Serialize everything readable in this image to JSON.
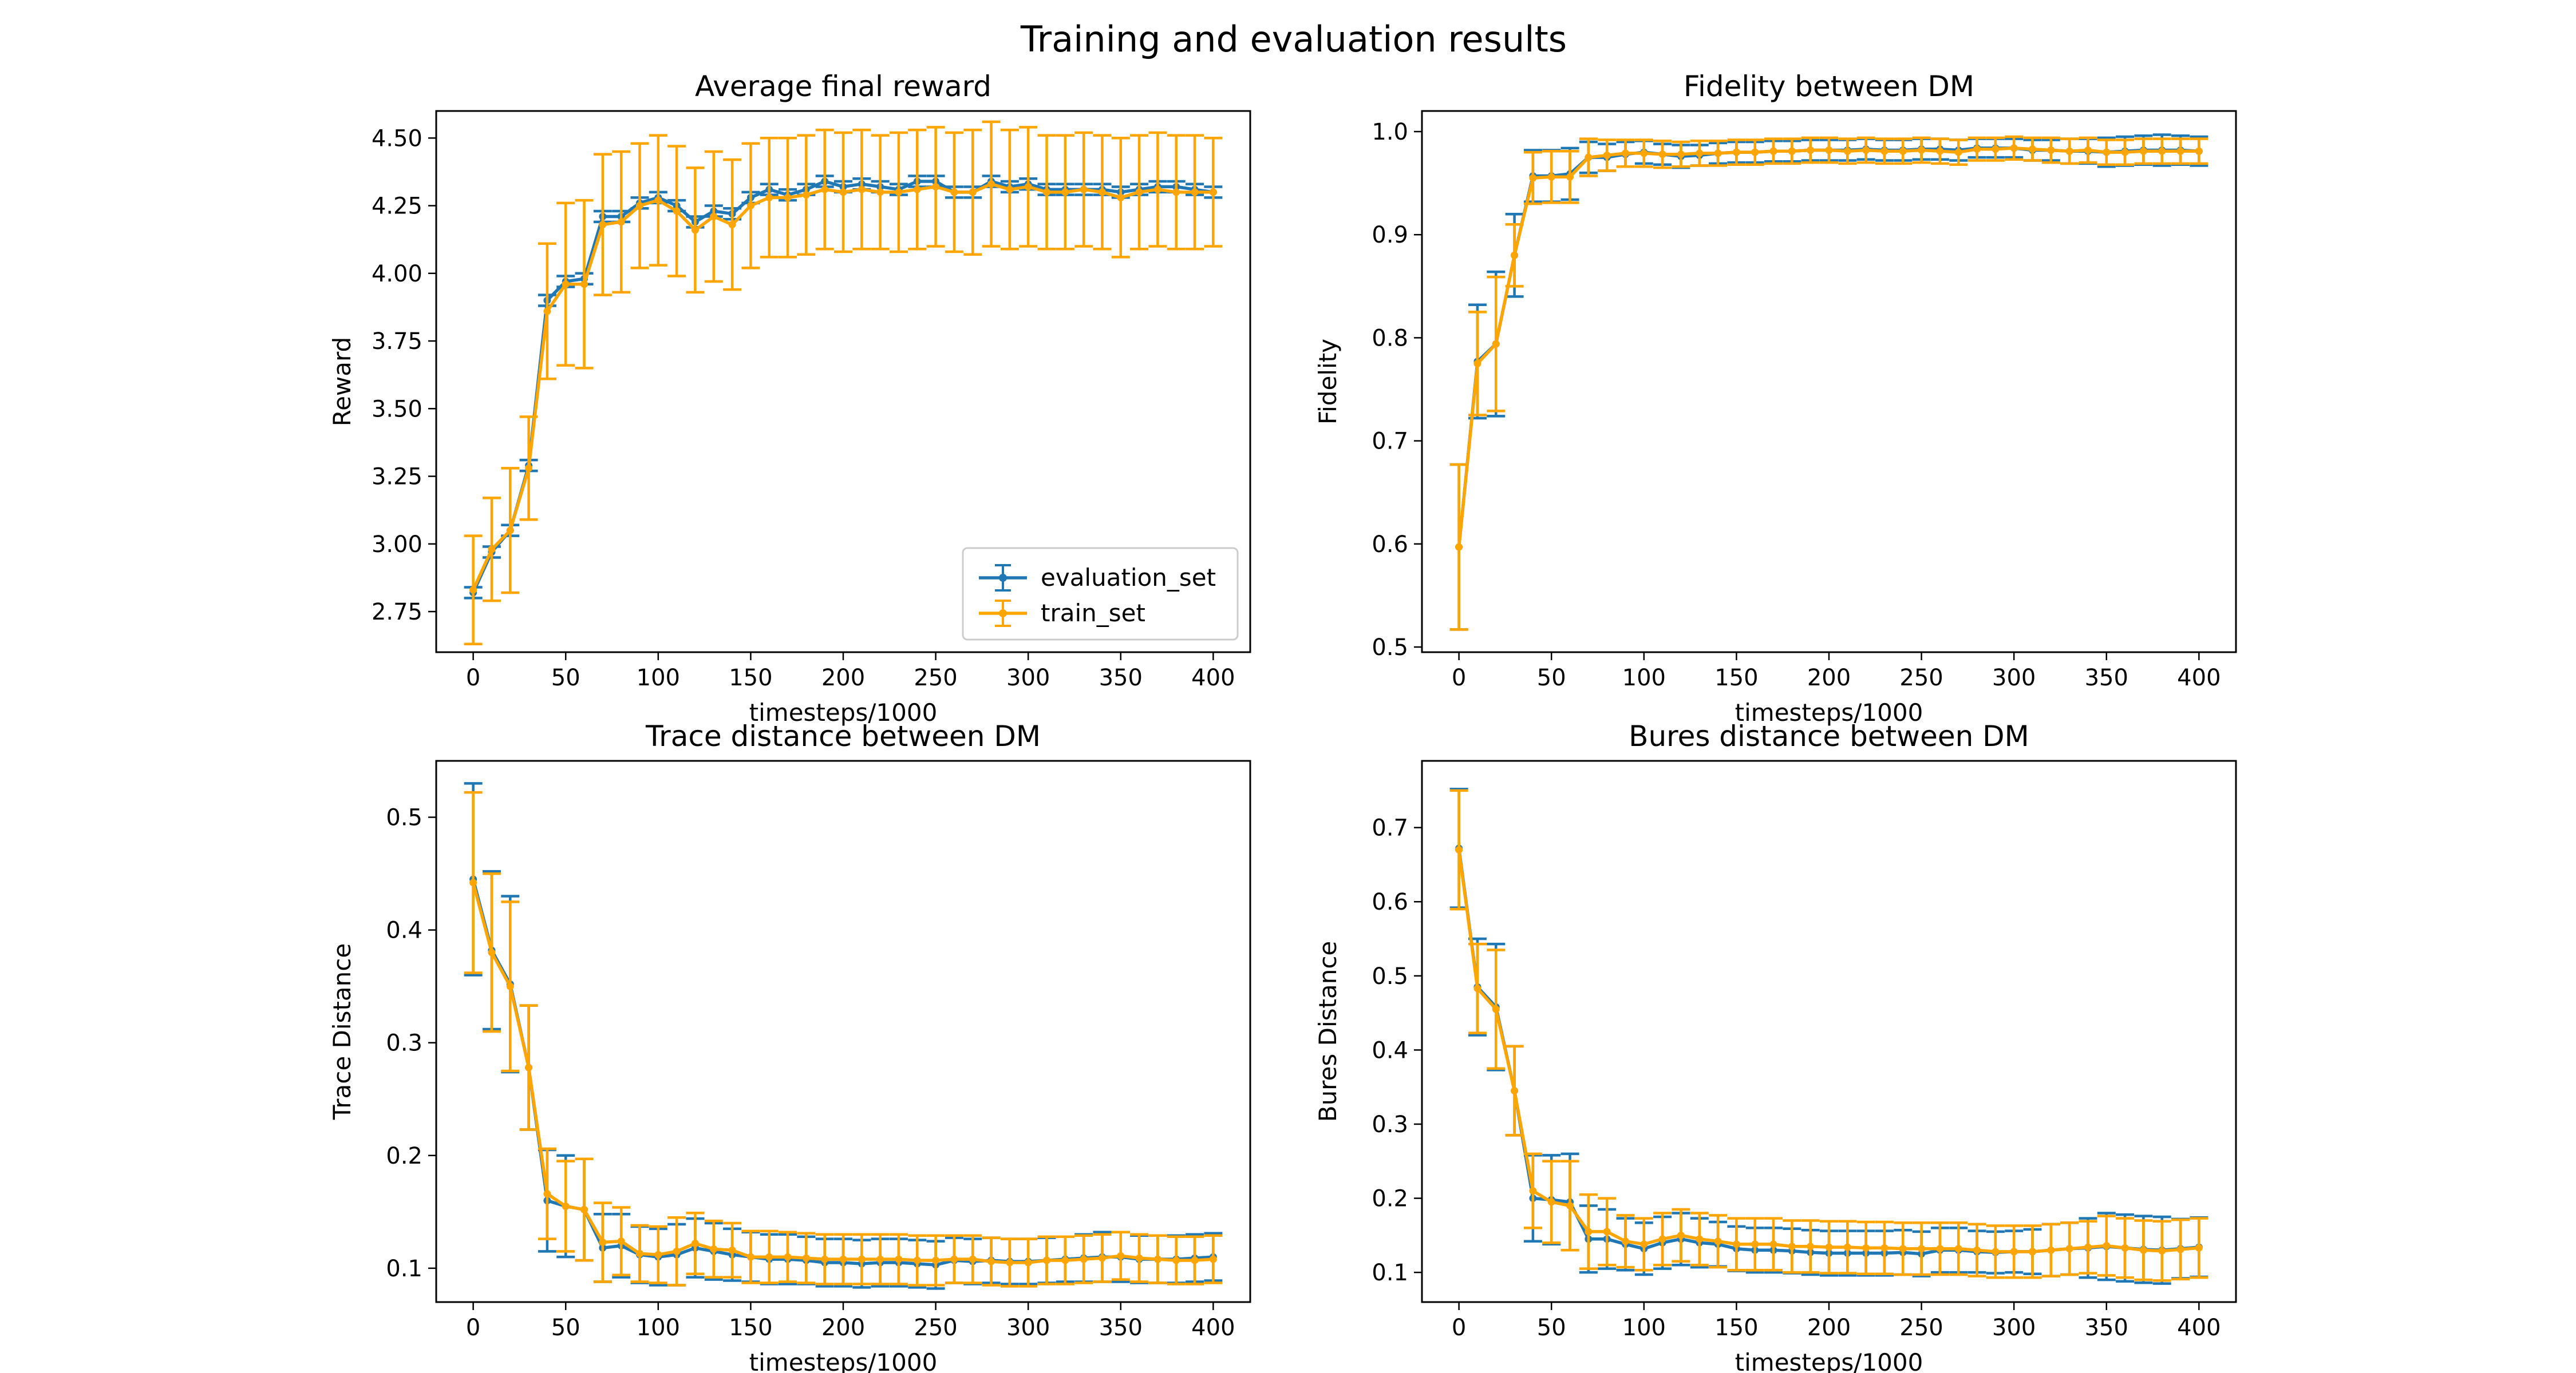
{
  "figure": {
    "title": "Training and evaluation results",
    "colors": {
      "evaluation": "#1f77b4",
      "train": "#ffa500"
    }
  },
  "chart_data": [
    {
      "type": "line",
      "error_bars": true,
      "title": "Average final reward",
      "xlabel": "timesteps/1000",
      "ylabel": "Reward",
      "xlim": [
        -20,
        420
      ],
      "ylim": [
        2.6,
        4.6
      ],
      "xticks": [
        0,
        50,
        100,
        150,
        200,
        250,
        300,
        350,
        400
      ],
      "yticks": [
        2.75,
        3.0,
        3.25,
        3.5,
        3.75,
        4.0,
        4.25,
        4.5
      ],
      "ytick_labels": [
        "2.75",
        "3.00",
        "3.25",
        "3.50",
        "3.75",
        "4.00",
        "4.25",
        "4.50"
      ],
      "legend": {
        "position": "lower-right",
        "entries": [
          "evaluation_set",
          "train_set"
        ]
      },
      "x": [
        0,
        10,
        20,
        30,
        40,
        50,
        60,
        70,
        80,
        90,
        100,
        110,
        120,
        130,
        140,
        150,
        160,
        170,
        180,
        190,
        200,
        210,
        220,
        230,
        240,
        250,
        260,
        270,
        280,
        290,
        300,
        310,
        320,
        330,
        340,
        350,
        360,
        370,
        380,
        390,
        400
      ],
      "series": [
        {
          "name": "evaluation_set",
          "values": [
            2.82,
            2.97,
            3.05,
            3.29,
            3.9,
            3.97,
            3.98,
            4.21,
            4.21,
            4.26,
            4.28,
            4.25,
            4.19,
            4.23,
            4.22,
            4.28,
            4.31,
            4.29,
            4.31,
            4.34,
            4.32,
            4.33,
            4.32,
            4.31,
            4.34,
            4.34,
            4.3,
            4.3,
            4.34,
            4.32,
            4.33,
            4.31,
            4.31,
            4.31,
            4.31,
            4.3,
            4.31,
            4.32,
            4.32,
            4.31,
            4.3
          ],
          "errors": [
            0.02,
            0.02,
            0.02,
            0.02,
            0.02,
            0.02,
            0.02,
            0.02,
            0.02,
            0.02,
            0.02,
            0.02,
            0.02,
            0.02,
            0.02,
            0.02,
            0.02,
            0.02,
            0.02,
            0.02,
            0.02,
            0.02,
            0.02,
            0.02,
            0.02,
            0.02,
            0.02,
            0.02,
            0.02,
            0.02,
            0.02,
            0.02,
            0.02,
            0.02,
            0.02,
            0.02,
            0.02,
            0.02,
            0.02,
            0.02,
            0.02
          ]
        },
        {
          "name": "train_set",
          "values": [
            2.83,
            2.98,
            3.05,
            3.28,
            3.86,
            3.96,
            3.96,
            4.18,
            4.19,
            4.25,
            4.27,
            4.23,
            4.16,
            4.21,
            4.18,
            4.25,
            4.28,
            4.28,
            4.29,
            4.31,
            4.3,
            4.31,
            4.3,
            4.3,
            4.31,
            4.32,
            4.3,
            4.3,
            4.33,
            4.31,
            4.32,
            4.3,
            4.3,
            4.31,
            4.3,
            4.28,
            4.3,
            4.31,
            4.3,
            4.3,
            4.3
          ],
          "errors": [
            0.2,
            0.19,
            0.23,
            0.19,
            0.25,
            0.3,
            0.31,
            0.26,
            0.26,
            0.23,
            0.24,
            0.24,
            0.23,
            0.24,
            0.24,
            0.23,
            0.22,
            0.22,
            0.22,
            0.22,
            0.22,
            0.22,
            0.21,
            0.22,
            0.22,
            0.22,
            0.22,
            0.23,
            0.23,
            0.22,
            0.22,
            0.21,
            0.21,
            0.21,
            0.21,
            0.22,
            0.21,
            0.21,
            0.21,
            0.21,
            0.2
          ]
        }
      ]
    },
    {
      "type": "line",
      "error_bars": true,
      "title": "Fidelity between DM",
      "xlabel": "timesteps/1000",
      "ylabel": "Fidelity",
      "xlim": [
        -20,
        420
      ],
      "ylim": [
        0.495,
        1.02
      ],
      "xticks": [
        0,
        50,
        100,
        150,
        200,
        250,
        300,
        350,
        400
      ],
      "yticks": [
        0.5,
        0.6,
        0.7,
        0.8,
        0.9,
        1.0
      ],
      "ytick_labels": [
        "0.5",
        "0.6",
        "0.7",
        "0.8",
        "0.9",
        "1.0"
      ],
      "x": [
        0,
        10,
        20,
        30,
        40,
        50,
        60,
        70,
        80,
        90,
        100,
        110,
        120,
        130,
        140,
        150,
        160,
        170,
        180,
        190,
        200,
        210,
        220,
        230,
        240,
        250,
        260,
        270,
        280,
        290,
        300,
        310,
        320,
        330,
        340,
        350,
        360,
        370,
        380,
        390,
        400
      ],
      "series": [
        {
          "name": "evaluation_set",
          "values": [
            0.597,
            0.777,
            0.794,
            0.88,
            0.957,
            0.957,
            0.959,
            0.975,
            0.975,
            0.978,
            0.98,
            0.978,
            0.976,
            0.977,
            0.979,
            0.98,
            0.98,
            0.981,
            0.981,
            0.982,
            0.982,
            0.982,
            0.983,
            0.982,
            0.982,
            0.983,
            0.983,
            0.982,
            0.984,
            0.984,
            0.984,
            0.982,
            0.982,
            0.981,
            0.981,
            0.98,
            0.981,
            0.982,
            0.982,
            0.982,
            0.981
          ],
          "errors": [
            0.08,
            0.055,
            0.07,
            0.04,
            0.025,
            0.025,
            0.025,
            0.015,
            0.013,
            0.012,
            0.011,
            0.01,
            0.011,
            0.01,
            0.01,
            0.01,
            0.01,
            0.01,
            0.01,
            0.01,
            0.01,
            0.01,
            0.01,
            0.01,
            0.01,
            0.01,
            0.01,
            0.01,
            0.009,
            0.009,
            0.009,
            0.01,
            0.01,
            0.012,
            0.012,
            0.014,
            0.014,
            0.014,
            0.015,
            0.014,
            0.014
          ]
        },
        {
          "name": "train_set",
          "values": [
            0.597,
            0.775,
            0.794,
            0.88,
            0.955,
            0.956,
            0.956,
            0.975,
            0.977,
            0.979,
            0.979,
            0.978,
            0.978,
            0.979,
            0.979,
            0.98,
            0.98,
            0.981,
            0.981,
            0.982,
            0.982,
            0.981,
            0.982,
            0.981,
            0.981,
            0.982,
            0.981,
            0.98,
            0.983,
            0.983,
            0.984,
            0.983,
            0.982,
            0.981,
            0.982,
            0.98,
            0.98,
            0.981,
            0.981,
            0.981,
            0.981
          ],
          "errors": [
            0.08,
            0.05,
            0.065,
            0.03,
            0.025,
            0.025,
            0.025,
            0.018,
            0.015,
            0.013,
            0.013,
            0.013,
            0.012,
            0.012,
            0.012,
            0.012,
            0.012,
            0.012,
            0.012,
            0.012,
            0.012,
            0.012,
            0.012,
            0.012,
            0.012,
            0.012,
            0.012,
            0.012,
            0.011,
            0.011,
            0.011,
            0.011,
            0.012,
            0.012,
            0.012,
            0.012,
            0.012,
            0.012,
            0.012,
            0.012,
            0.012
          ]
        }
      ]
    },
    {
      "type": "line",
      "error_bars": true,
      "title": "Trace distance between DM",
      "xlabel": "timesteps/1000",
      "ylabel": "Trace Distance",
      "xlim": [
        -20,
        420
      ],
      "ylim": [
        0.07,
        0.55
      ],
      "xticks": [
        0,
        50,
        100,
        150,
        200,
        250,
        300,
        350,
        400
      ],
      "yticks": [
        0.1,
        0.2,
        0.3,
        0.4,
        0.5
      ],
      "ytick_labels": [
        "0.1",
        "0.2",
        "0.3",
        "0.4",
        "0.5"
      ],
      "x": [
        0,
        10,
        20,
        30,
        40,
        50,
        60,
        70,
        80,
        90,
        100,
        110,
        120,
        130,
        140,
        150,
        160,
        170,
        180,
        190,
        200,
        210,
        220,
        230,
        240,
        250,
        260,
        270,
        280,
        290,
        300,
        310,
        320,
        330,
        340,
        350,
        360,
        370,
        380,
        390,
        400
      ],
      "series": [
        {
          "name": "evaluation_set",
          "values": [
            0.445,
            0.382,
            0.352,
            0.278,
            0.16,
            0.155,
            0.152,
            0.118,
            0.12,
            0.112,
            0.11,
            0.112,
            0.118,
            0.115,
            0.112,
            0.11,
            0.108,
            0.108,
            0.107,
            0.105,
            0.105,
            0.104,
            0.105,
            0.105,
            0.104,
            0.103,
            0.107,
            0.106,
            0.107,
            0.106,
            0.106,
            0.107,
            0.108,
            0.109,
            0.11,
            0.11,
            0.108,
            0.108,
            0.108,
            0.109,
            0.11
          ],
          "errors": [
            0.085,
            0.07,
            0.078,
            0.055,
            0.045,
            0.045,
            0.045,
            0.03,
            0.028,
            0.025,
            0.025,
            0.027,
            0.026,
            0.025,
            0.023,
            0.022,
            0.022,
            0.022,
            0.021,
            0.021,
            0.021,
            0.021,
            0.021,
            0.021,
            0.021,
            0.021,
            0.02,
            0.02,
            0.02,
            0.02,
            0.02,
            0.02,
            0.02,
            0.021,
            0.022,
            0.022,
            0.021,
            0.021,
            0.021,
            0.021,
            0.021
          ]
        },
        {
          "name": "train_set",
          "values": [
            0.442,
            0.38,
            0.35,
            0.278,
            0.166,
            0.155,
            0.152,
            0.123,
            0.124,
            0.113,
            0.112,
            0.115,
            0.122,
            0.117,
            0.116,
            0.11,
            0.11,
            0.11,
            0.109,
            0.108,
            0.108,
            0.108,
            0.108,
            0.108,
            0.107,
            0.107,
            0.108,
            0.108,
            0.106,
            0.105,
            0.105,
            0.107,
            0.107,
            0.108,
            0.109,
            0.111,
            0.109,
            0.108,
            0.107,
            0.107,
            0.108
          ],
          "errors": [
            0.08,
            0.07,
            0.075,
            0.055,
            0.04,
            0.04,
            0.045,
            0.035,
            0.03,
            0.025,
            0.025,
            0.03,
            0.027,
            0.025,
            0.024,
            0.023,
            0.023,
            0.022,
            0.022,
            0.022,
            0.022,
            0.022,
            0.022,
            0.022,
            0.022,
            0.022,
            0.021,
            0.021,
            0.021,
            0.021,
            0.021,
            0.021,
            0.021,
            0.021,
            0.021,
            0.021,
            0.021,
            0.021,
            0.021,
            0.021,
            0.021
          ]
        }
      ]
    },
    {
      "type": "line",
      "error_bars": true,
      "title": "Bures distance between DM",
      "xlabel": "timesteps/1000",
      "ylabel": "Bures Distance",
      "xlim": [
        -20,
        420
      ],
      "ylim": [
        0.06,
        0.79
      ],
      "xticks": [
        0,
        50,
        100,
        150,
        200,
        250,
        300,
        350,
        400
      ],
      "yticks": [
        0.1,
        0.2,
        0.3,
        0.4,
        0.5,
        0.6,
        0.7
      ],
      "ytick_labels": [
        "0.1",
        "0.2",
        "0.3",
        "0.4",
        "0.5",
        "0.6",
        "0.7"
      ],
      "x": [
        0,
        10,
        20,
        30,
        40,
        50,
        60,
        70,
        80,
        90,
        100,
        110,
        120,
        130,
        140,
        150,
        160,
        170,
        180,
        190,
        200,
        210,
        220,
        230,
        240,
        250,
        260,
        270,
        280,
        290,
        300,
        310,
        320,
        330,
        340,
        350,
        360,
        370,
        380,
        390,
        400
      ],
      "series": [
        {
          "name": "evaluation_set",
          "values": [
            0.672,
            0.485,
            0.458,
            0.345,
            0.2,
            0.198,
            0.195,
            0.145,
            0.145,
            0.138,
            0.132,
            0.14,
            0.145,
            0.14,
            0.138,
            0.132,
            0.13,
            0.13,
            0.129,
            0.127,
            0.126,
            0.126,
            0.126,
            0.126,
            0.127,
            0.125,
            0.13,
            0.13,
            0.128,
            0.127,
            0.128,
            0.128,
            0.13,
            0.132,
            0.133,
            0.135,
            0.133,
            0.131,
            0.13,
            0.132,
            0.134
          ],
          "errors": [
            0.08,
            0.065,
            0.085,
            0.06,
            0.058,
            0.06,
            0.065,
            0.045,
            0.04,
            0.035,
            0.035,
            0.035,
            0.035,
            0.033,
            0.03,
            0.03,
            0.03,
            0.03,
            0.03,
            0.03,
            0.03,
            0.03,
            0.03,
            0.03,
            0.03,
            0.03,
            0.03,
            0.03,
            0.028,
            0.028,
            0.028,
            0.03,
            0.035,
            0.035,
            0.04,
            0.045,
            0.045,
            0.045,
            0.045,
            0.04,
            0.04
          ]
        },
        {
          "name": "train_set",
          "values": [
            0.67,
            0.483,
            0.455,
            0.345,
            0.21,
            0.195,
            0.19,
            0.155,
            0.155,
            0.142,
            0.138,
            0.145,
            0.15,
            0.145,
            0.142,
            0.138,
            0.138,
            0.138,
            0.135,
            0.135,
            0.134,
            0.134,
            0.133,
            0.133,
            0.132,
            0.132,
            0.132,
            0.132,
            0.13,
            0.128,
            0.128,
            0.128,
            0.13,
            0.132,
            0.134,
            0.136,
            0.133,
            0.13,
            0.129,
            0.131,
            0.133
          ],
          "errors": [
            0.08,
            0.06,
            0.08,
            0.06,
            0.05,
            0.055,
            0.06,
            0.05,
            0.045,
            0.035,
            0.035,
            0.035,
            0.035,
            0.035,
            0.035,
            0.035,
            0.035,
            0.035,
            0.035,
            0.035,
            0.035,
            0.035,
            0.035,
            0.035,
            0.035,
            0.035,
            0.035,
            0.035,
            0.035,
            0.035,
            0.035,
            0.035,
            0.035,
            0.035,
            0.035,
            0.04,
            0.04,
            0.04,
            0.04,
            0.04,
            0.04
          ]
        }
      ]
    }
  ]
}
